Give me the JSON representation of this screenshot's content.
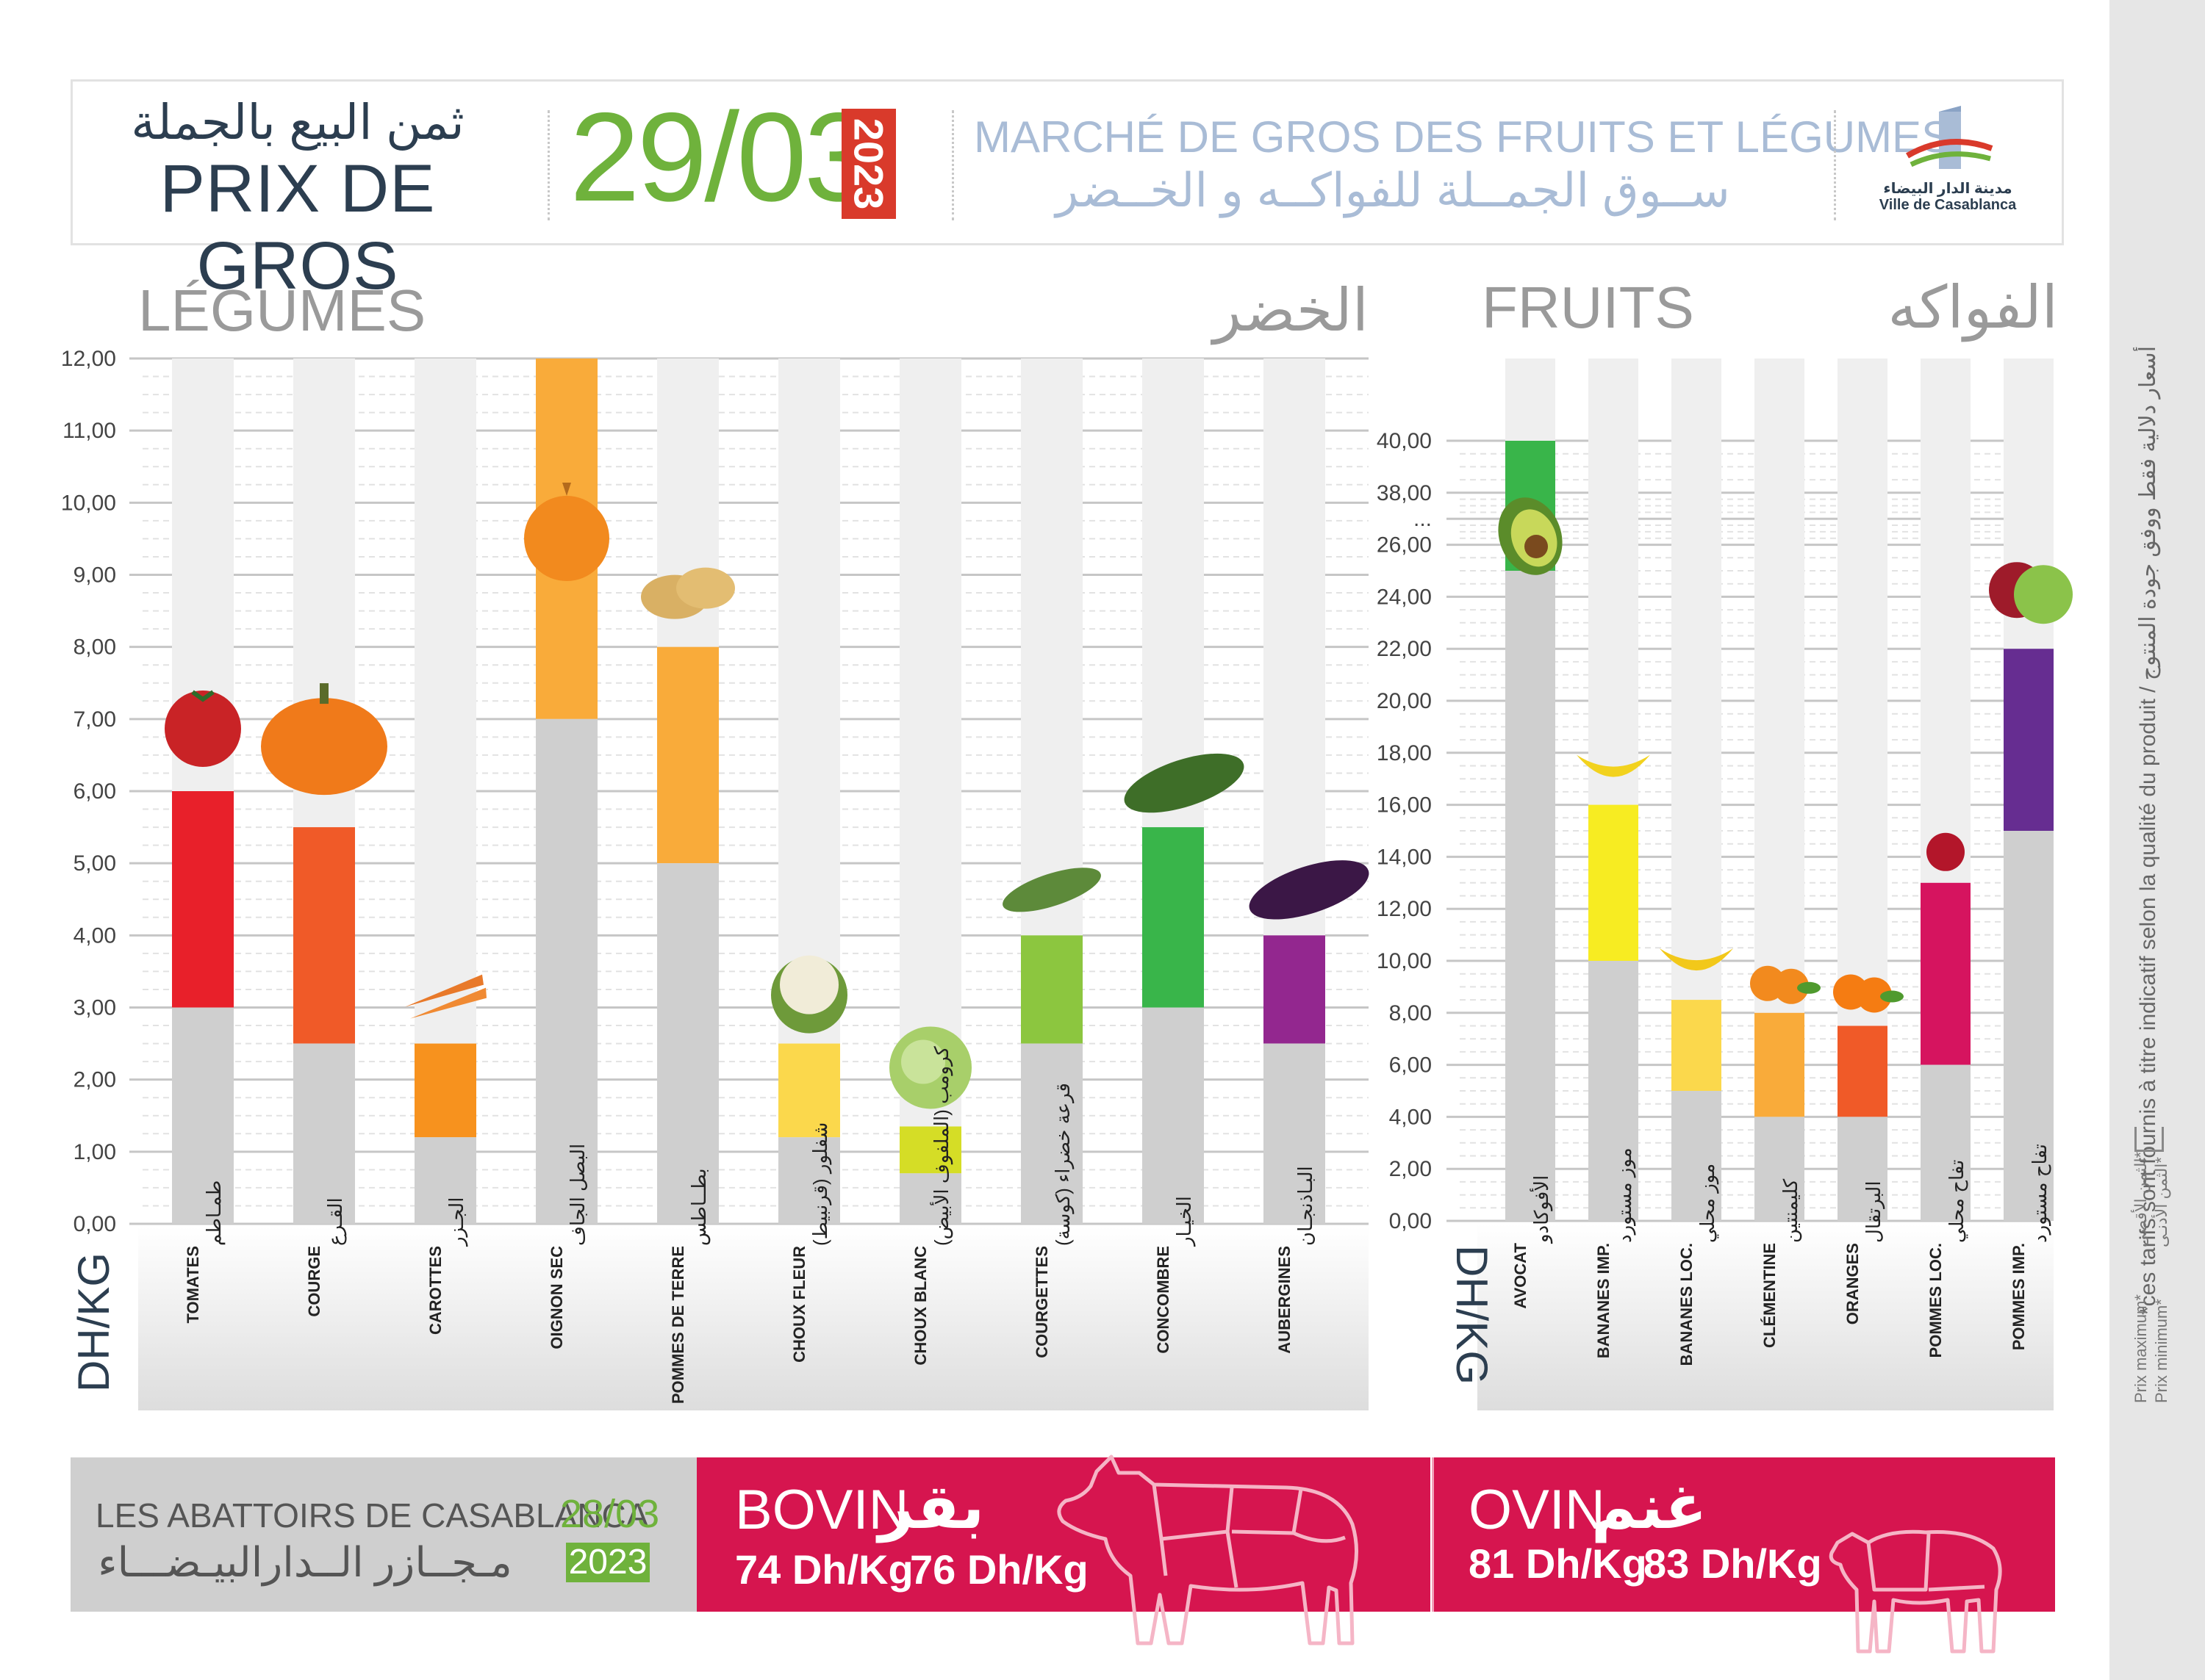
{
  "header": {
    "title_ar": "ثمن البيع بالجملة",
    "title_fr": "PRIX DE GROS",
    "date": "29/03",
    "year": "2023",
    "market_fr": "MARCHÉ DE GROS DES FRUITS ET LÉGUMES",
    "market_ar": "ســوق الجمــلة للفواكــه و الخــضر",
    "logo_ar": "مدينة الدار البيضاء",
    "logo_fr": "Ville de Casablanca"
  },
  "colors": {
    "min_bar": "#cfcfcf",
    "date_green": "#6fb23c",
    "year_red": "#d93a2b",
    "meat_red": "#d6154f",
    "header_blue": "#a9bcd6",
    "dark_text": "#2c3e50"
  },
  "chart_data": [
    {
      "type": "bar",
      "title_fr": "LÉGUMES",
      "title_ar": "الخضر",
      "ylabel": "DH/KG",
      "ylim": [
        0,
        12
      ],
      "yticks": [
        "0,00",
        "1,00",
        "2,00",
        "3,00",
        "4,00",
        "5,00",
        "6,00",
        "7,00",
        "8,00",
        "9,00",
        "10,00",
        "11,00",
        "12,00"
      ],
      "categories_fr": [
        "TOMATES",
        "COURGE",
        "CAROTTES",
        "OIGNON SEC",
        "POMMES DE TERRE",
        "CHOUX FLEUR",
        "CHOUX BLANC",
        "COURGETTES",
        "CONCOMBRE",
        "AUBERGINES"
      ],
      "categories_ar": [
        "طمـاطم",
        "القـرع",
        "الجـزر",
        "البصل الجاف",
        "بطــاطس",
        "شفلور (قرنبيط)",
        "كرومب (الملفوف الأبيض)",
        "قرعة خضراء (كوسة)",
        "الخيـار",
        "البـاذنجـان"
      ],
      "series": [
        {
          "name": "Prix minimum*",
          "values": [
            3,
            2.5,
            1.2,
            7,
            5,
            1.2,
            0.7,
            2.5,
            3,
            2.5
          ]
        },
        {
          "name": "Prix maximum*",
          "values": [
            6,
            5.5,
            2.5,
            12,
            8,
            2.5,
            1.35,
            4,
            5.5,
            4
          ]
        }
      ],
      "bar_colors": [
        "#e8202a",
        "#f05a28",
        "#f7921e",
        "#f9ab3a",
        "#f9ab3a",
        "#fbd84c",
        "#d5dd26",
        "#8cc63f",
        "#39b54a",
        "#93278f"
      ],
      "legend": "right"
    },
    {
      "type": "bar",
      "title_fr": "FRUITS",
      "title_ar": "الفواكه",
      "ylabel": "DH/KG",
      "yticks": [
        "0,00",
        "2,00",
        "4,00",
        "6,00",
        "8,00",
        "10,00",
        "12,00",
        "14,00",
        "16,00",
        "18,00",
        "20,00",
        "22,00",
        "24,00",
        "26,00",
        "...",
        "38,00",
        "40,00"
      ],
      "axis_break": [
        28,
        38
      ],
      "categories_fr": [
        "AVOCAT",
        "BANANES IMP.",
        "BANANES LOC.",
        "CLÉMENTINE",
        "ORANGES",
        "POMMES LOC.",
        "POMMES IMP."
      ],
      "categories_ar": [
        "الأفوكادو",
        "موز مستورد",
        "موز محلي",
        "كليمنتين",
        "البرتقال",
        "تفاح محلي",
        "تفاح مستورد"
      ],
      "series": [
        {
          "name": "Prix minimum*",
          "values": [
            25,
            10,
            5,
            4,
            4,
            6,
            15
          ]
        },
        {
          "name": "Prix maximum*",
          "values": [
            40,
            16,
            8.5,
            8,
            7.5,
            13,
            22
          ]
        }
      ],
      "bar_colors": [
        "#39b54a",
        "#f7ec22",
        "#fbd84c",
        "#f9ab3a",
        "#f05a28",
        "#d6145f",
        "#662d91"
      ],
      "legend": "right"
    }
  ],
  "abattoirs": {
    "title_fr": "LES ABATTOIRS DE CASABLANCA",
    "title_ar": "مـجــازر الــدارالبيـضـــاء",
    "date": "28/03",
    "year": "2023",
    "bovin": {
      "label_fr": "BOVIN",
      "label_ar": "بقر",
      "min": "74 Dh/Kg",
      "max": "76 Dh/Kg"
    },
    "ovin": {
      "label_fr": "OVIN",
      "label_ar": "غنم",
      "min": "81 Dh/Kg",
      "max": "83 Dh/Kg"
    }
  },
  "side": {
    "note": "*ces tarifs sont fournis à titre indicatif selon la qualité du produit / أسعار دلالية فقط ووفق جودة المنتوج",
    "legend_max": "Prix maximum*",
    "legend_max_ar": "*الثمن الأقصى",
    "legend_min": "Prix minimum*",
    "legend_min_ar": "*الثمن الأدنـى"
  }
}
